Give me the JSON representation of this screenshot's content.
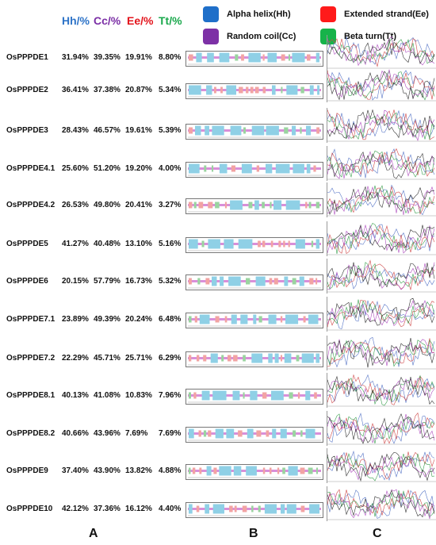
{
  "headers": [
    {
      "text": "Hh/%",
      "color": "#2e74c8"
    },
    {
      "text": "Cc/%",
      "color": "#7b2fa6"
    },
    {
      "text": "Ee/%",
      "color": "#e3141c"
    },
    {
      "text": "Tt/%",
      "color": "#1aa84c"
    }
  ],
  "legend": [
    {
      "label": "Alpha helix(Hh)",
      "color": "#1f6fc9"
    },
    {
      "label": "Extended strand(Ee)",
      "color": "#ff1a1a"
    },
    {
      "label": "Random coil(Cc)",
      "color": "#7d31a6"
    },
    {
      "label": "Beta turn(Tt)",
      "color": "#16b34a"
    }
  ],
  "rows": [
    {
      "name": "OsPPPDE1",
      "hh": "31.94%",
      "cc": "39.35%",
      "ee": "19.91%",
      "tt": "8.80%"
    },
    {
      "name": "OsPPPDE2",
      "hh": "36.41%",
      "cc": "37.38%",
      "ee": "20.87%",
      "tt": "5.34%"
    },
    {
      "name": "OsPPPDE3",
      "hh": "28.43%",
      "cc": "46.57%",
      "ee": "19.61%",
      "tt": "5.39%"
    },
    {
      "name": "OsPPPDE4.1",
      "hh": "25.60%",
      "cc": "51.20%",
      "ee": "19.20%",
      "tt": "4.00%"
    },
    {
      "name": "OsPPPDE4.2",
      "hh": "26.53%",
      "cc": "49.80%",
      "ee": "20.41%",
      "tt": "3.27%"
    },
    {
      "name": "OsPPPDE5",
      "hh": "41.27%",
      "cc": "40.48%",
      "ee": "13.10%",
      "tt": "5.16%"
    },
    {
      "name": "OsPPPDE6",
      "hh": "20.15%",
      "cc": "57.79%",
      "ee": "16.73%",
      "tt": "5.32%"
    },
    {
      "name": "OsPPPDE7.1",
      "hh": "23.89%",
      "cc": "49.39%",
      "ee": "20.24%",
      "tt": "6.48%"
    },
    {
      "name": "OsPPPDE7.2",
      "hh": "22.29%",
      "cc": "45.71%",
      "ee": "25.71%",
      "tt": "6.29%"
    },
    {
      "name": "OsPPPDE8.1",
      "hh": "40.13%",
      "cc": "41.08%",
      "ee": "10.83%",
      "tt": "7.96%"
    },
    {
      "name": "OsPPPDE8.2",
      "hh": "40.66%",
      "cc": "43.96%",
      "ee": "7.69%",
      "tt": "7.69%"
    },
    {
      "name": "OsPPPDE9",
      "hh": "37.40%",
      "cc": "43.90%",
      "ee": "13.82%",
      "tt": "4.88%"
    },
    {
      "name": "OsPPPDE10",
      "hh": "42.12%",
      "cc": "37.36%",
      "ee": "16.12%",
      "tt": "4.40%"
    }
  ],
  "panel_labels": [
    "A",
    "B",
    "C"
  ],
  "colors": {
    "coil": "#d98fd9",
    "helix": "#8fd0e6",
    "strand": "#f2a3a3",
    "turn": "#9ad4a0",
    "trace_blue": "#5a78c8",
    "trace_red": "#d04a4a",
    "trace_green": "#3aa050",
    "trace_purple": "#b050c0"
  }
}
